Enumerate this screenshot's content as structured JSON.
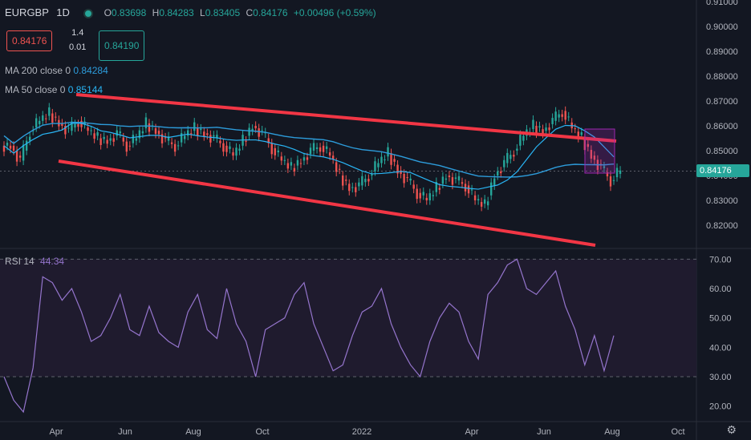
{
  "header": {
    "symbol": "EURGBP",
    "interval": "1D",
    "open_label": "O",
    "open": "0.83698",
    "high_label": "H",
    "high": "0.84283",
    "low_label": "L",
    "low": "0.83405",
    "close_label": "C",
    "close": "0.84176",
    "change": "+0.00496 (+0.59%)"
  },
  "trade": {
    "sell_price": "0.84176",
    "buy_price": "0.84190",
    "qty": "1.4",
    "spread": "0.01"
  },
  "indicators": {
    "ma200": {
      "label": "MA 200 close 0",
      "value": "0.84284",
      "color": "#2d9cdb"
    },
    "ma50": {
      "label": "MA 50 close 0",
      "value": "0.85144",
      "color": "#29b6f6"
    },
    "rsi": {
      "label": "RSI 14",
      "value": "44.34",
      "color": "#9575cd"
    }
  },
  "price_axis": [
    "0.91000",
    "0.90000",
    "0.89000",
    "0.88000",
    "0.87000",
    "0.86000",
    "0.85000",
    "0.84000",
    "0.83000",
    "0.82000"
  ],
  "current_price_tag": "0.84176",
  "rsi_axis": [
    "70.00",
    "60.00",
    "50.00",
    "40.00",
    "30.00",
    "20.00"
  ],
  "time_axis": [
    "Apr",
    "Jun",
    "Aug",
    "Oct",
    "2022",
    "Apr",
    "Jun",
    "Aug",
    "Oct"
  ],
  "colors": {
    "up": "#26a69a",
    "down": "#ef5350",
    "trendline": "#f23645",
    "bg": "#131722",
    "rsi_band": "#1f1b2e"
  },
  "chart_data": {
    "type": "candlestick",
    "price_range": [
      0.81,
      0.91
    ],
    "rsi_range": [
      15,
      72
    ],
    "close_series": [
      0.852,
      0.846,
      0.858,
      0.862,
      0.865,
      0.861,
      0.858,
      0.862,
      0.858,
      0.855,
      0.854,
      0.857,
      0.852,
      0.855,
      0.861,
      0.858,
      0.854,
      0.852,
      0.856,
      0.859,
      0.857,
      0.855,
      0.852,
      0.848,
      0.854,
      0.86,
      0.857,
      0.851,
      0.846,
      0.843,
      0.846,
      0.85,
      0.852,
      0.848,
      0.84,
      0.835,
      0.836,
      0.84,
      0.845,
      0.849,
      0.842,
      0.838,
      0.833,
      0.83,
      0.835,
      0.84,
      0.838,
      0.836,
      0.83,
      0.828,
      0.84,
      0.845,
      0.85,
      0.856,
      0.86,
      0.858,
      0.862,
      0.866,
      0.859,
      0.855,
      0.848,
      0.843,
      0.838,
      0.842
    ],
    "rsi_series": [
      30,
      22,
      18,
      33,
      64,
      62,
      56,
      60,
      52,
      42,
      44,
      50,
      58,
      46,
      44,
      54,
      45,
      42,
      40,
      52,
      58,
      46,
      43,
      60,
      48,
      42,
      30,
      46,
      48,
      50,
      58,
      62,
      48,
      40,
      32,
      34,
      44,
      52,
      54,
      60,
      48,
      40,
      34,
      30,
      42,
      50,
      55,
      52,
      42,
      36,
      58,
      62,
      68,
      70,
      60,
      58,
      62,
      66,
      54,
      46,
      34,
      44,
      32,
      44
    ]
  }
}
